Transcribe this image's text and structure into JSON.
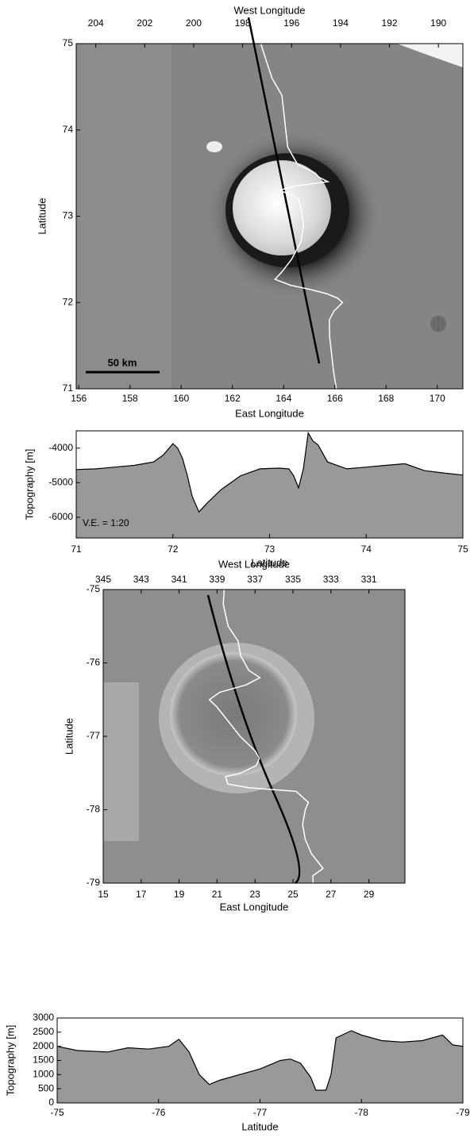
{
  "chart_data": [
    {
      "type": "image",
      "x2label": "West Longitude",
      "xlabel": "East Longitude",
      "ylabel": "Latitude",
      "xlim": [
        155.9,
        171.0
      ],
      "xticks": [
        156,
        158,
        160,
        162,
        164,
        166,
        168,
        170
      ],
      "x2lim": [
        204.8,
        189.0
      ],
      "x2ticks": [
        204,
        202,
        200,
        198,
        196,
        194,
        192,
        190
      ],
      "ylim": [
        71,
        75
      ],
      "yticks": [
        71,
        72,
        73,
        74,
        75
      ],
      "annotation": "50 km"
    },
    {
      "type": "area",
      "ylabel": "Topography [m]",
      "xlabel": "Latitude",
      "color": "#999999",
      "xlim": [
        71,
        75
      ],
      "xticks": [
        71,
        72,
        73,
        74,
        75
      ],
      "ylim": [
        -6600,
        -3500
      ],
      "yticks": [
        -6000,
        -5000,
        -4000
      ],
      "annotation": "V.E. = 1:20",
      "x": [
        71.0,
        71.2,
        71.4,
        71.6,
        71.7,
        71.8,
        71.9,
        72.0,
        72.05,
        72.1,
        72.15,
        72.2,
        72.27,
        72.35,
        72.5,
        72.7,
        72.9,
        73.1,
        73.2,
        73.25,
        73.3,
        73.35,
        73.4,
        73.45,
        73.5,
        73.6,
        73.8,
        74.0,
        74.2,
        74.4,
        74.6,
        74.8,
        75.0
      ],
      "values": [
        -4620,
        -4600,
        -4550,
        -4500,
        -4450,
        -4400,
        -4200,
        -3870,
        -4000,
        -4300,
        -4800,
        -5400,
        -5850,
        -5600,
        -5200,
        -4800,
        -4600,
        -4580,
        -4600,
        -4800,
        -5150,
        -4600,
        -3560,
        -3800,
        -3900,
        -4400,
        -4600,
        -4550,
        -4500,
        -4450,
        -4650,
        -4720,
        -4780
      ]
    },
    {
      "type": "image",
      "x2label": "West Longitude",
      "xlabel": "East Longitude",
      "ylabel": "Latitude",
      "xlim": [
        15.0,
        30.9
      ],
      "xticks": [
        15,
        17,
        19,
        21,
        23,
        25,
        27,
        29
      ],
      "x2lim": [
        345,
        329.1
      ],
      "x2ticks": [
        345,
        343,
        341,
        339,
        337,
        335,
        333,
        331
      ],
      "ylim": [
        -79,
        -75
      ],
      "yticks": [
        -79,
        -78,
        -77,
        -76,
        -75
      ]
    },
    {
      "type": "area",
      "ylabel": "Topography [m]",
      "xlabel": "Latitude",
      "color": "#999999",
      "xlim": [
        -75,
        -79
      ],
      "xticks": [
        -75,
        -76,
        -77,
        -78,
        -79
      ],
      "ylim": [
        0,
        3000
      ],
      "yticks": [
        0,
        500,
        1000,
        1500,
        2000,
        2500,
        3000
      ],
      "x": [
        -75.0,
        -75.2,
        -75.5,
        -75.7,
        -75.9,
        -76.1,
        -76.2,
        -76.3,
        -76.4,
        -76.5,
        -76.6,
        -76.8,
        -77.0,
        -77.2,
        -77.3,
        -77.4,
        -77.5,
        -77.55,
        -77.65,
        -77.7,
        -77.75,
        -77.9,
        -78.0,
        -78.2,
        -78.4,
        -78.6,
        -78.8,
        -78.9,
        -79.0
      ],
      "values": [
        2000,
        1850,
        1800,
        1950,
        1900,
        2000,
        2250,
        1800,
        1000,
        650,
        800,
        1000,
        1200,
        1500,
        1550,
        1400,
        900,
        450,
        450,
        1000,
        2300,
        2550,
        2400,
        2200,
        2150,
        2200,
        2400,
        2050,
        2000
      ]
    }
  ]
}
